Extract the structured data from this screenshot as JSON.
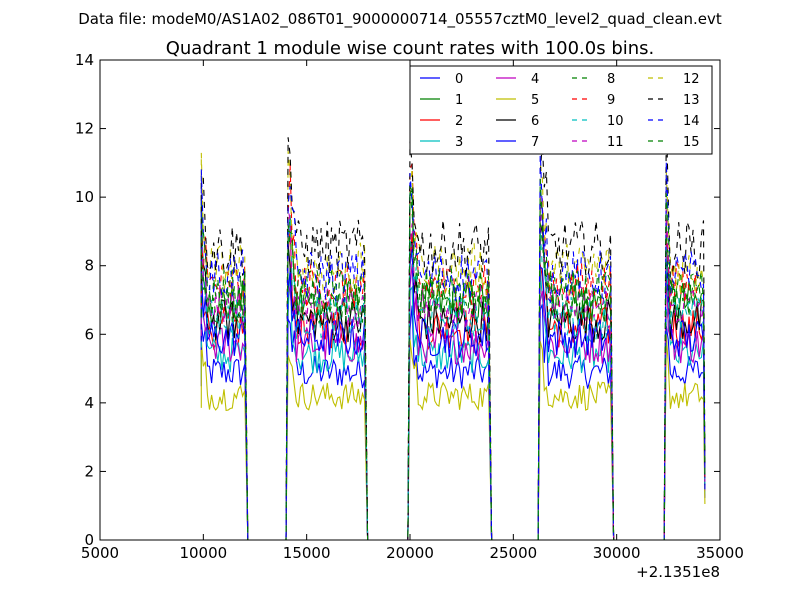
{
  "figure": {
    "suptitle": "Data file: modeM0/AS1A02_086T01_9000000714_05557cztM0_level2_quad_clean.evt"
  },
  "chart_data": {
    "type": "line",
    "title": "Quadrant 1 module wise count rates with 100.0s bins.",
    "xlabel": "",
    "ylabel": "",
    "x_offset_label": "+2.1351e8",
    "xlim": [
      5000,
      35000
    ],
    "ylim": [
      0,
      14
    ],
    "xticks": [
      5000,
      10000,
      15000,
      20000,
      25000,
      30000,
      35000
    ],
    "yticks": [
      0,
      2,
      4,
      6,
      8,
      10,
      12,
      14
    ],
    "bin_seconds": 100,
    "legend_location": "top-right",
    "legend_columns": 4,
    "segments": [
      [
        9900,
        12000
      ],
      [
        14100,
        17800
      ],
      [
        20000,
        23800
      ],
      [
        26300,
        29700
      ],
      [
        32400,
        34200
      ]
    ],
    "series": [
      {
        "name": "0",
        "color": "#0000ff",
        "style": "solid",
        "level": 4.9
      },
      {
        "name": "1",
        "color": "#008000",
        "style": "solid",
        "level": 6.9
      },
      {
        "name": "2",
        "color": "#ff0000",
        "style": "solid",
        "level": 6.2
      },
      {
        "name": "3",
        "color": "#00bfbf",
        "style": "solid",
        "level": 5.4
      },
      {
        "name": "4",
        "color": "#bf00bf",
        "style": "solid",
        "level": 5.7
      },
      {
        "name": "5",
        "color": "#bfbf00",
        "style": "solid",
        "level": 4.2
      },
      {
        "name": "6",
        "color": "#000000",
        "style": "solid",
        "level": 6.4
      },
      {
        "name": "7",
        "color": "#0000ff",
        "style": "solid",
        "level": 5.9
      },
      {
        "name": "8",
        "color": "#008000",
        "style": "dashed",
        "level": 7.0
      },
      {
        "name": "9",
        "color": "#ff0000",
        "style": "dashed",
        "level": 7.4
      },
      {
        "name": "10",
        "color": "#00bfbf",
        "style": "dashed",
        "level": 6.5
      },
      {
        "name": "11",
        "color": "#bf00bf",
        "style": "dashed",
        "level": 6.8
      },
      {
        "name": "12",
        "color": "#bfbf00",
        "style": "dashed",
        "level": 7.9
      },
      {
        "name": "13",
        "color": "#000000",
        "style": "dashed",
        "level": 8.5
      },
      {
        "name": "14",
        "color": "#0000ff",
        "style": "dashed",
        "level": 7.7
      },
      {
        "name": "15",
        "color": "#008000",
        "style": "dashed",
        "level": 7.2
      }
    ]
  }
}
